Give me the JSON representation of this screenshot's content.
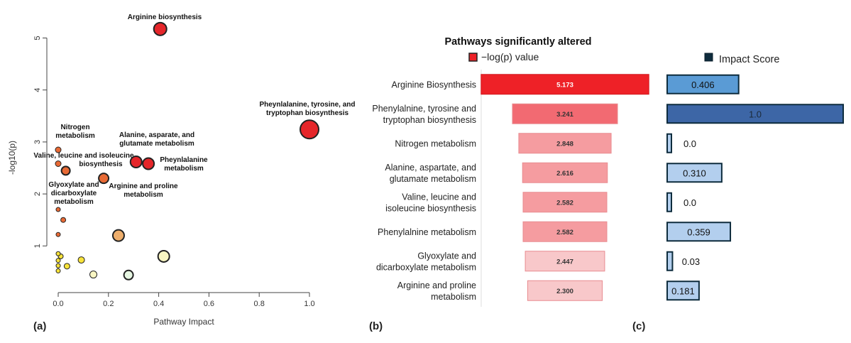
{
  "panel_labels": {
    "a": "(a)",
    "b": "(b)",
    "c": "(c)"
  },
  "colors": {
    "bar_deep": "#ee2127",
    "bar_mid": "#f26a72",
    "bar_light": "#f59ca0",
    "bar_pale": "#f8c8ca",
    "impact_mid": "#5a9bd5",
    "impact_dark": "#3d66a6",
    "impact_light": "#b3cfee",
    "impact_border": "#0e2c3d",
    "bubble_red": "#e5262a",
    "bubble_orange": "#e86a35",
    "bubble_tan": "#eeae6c",
    "bubble_yellow": "#f8e33a",
    "bubble_pale": "#f9f6c3",
    "bubble_mint": "#e6f6e2"
  },
  "chart_data": [
    {
      "type": "scatter",
      "title": "",
      "xlabel": "Pathway Impact",
      "ylabel": "-log10(p)",
      "xlim": [
        0,
        1.0
      ],
      "ylim": [
        0.2,
        5.35
      ],
      "xticks": [
        "0.0",
        "0.2",
        "0.4",
        "0.6",
        "0.8",
        "1.0"
      ],
      "yticks": [
        "1",
        "2",
        "3",
        "4",
        "5"
      ],
      "points": [
        {
          "x": 0.406,
          "y": 5.173,
          "size": 9,
          "color": "bubble_red",
          "label": "Arginine biosynthesis"
        },
        {
          "x": 1.0,
          "y": 3.241,
          "size": 13,
          "color": "bubble_red",
          "label": "Pheynlalanine, tyrosine, and tryptophan biosynthesis"
        },
        {
          "x": 0.0,
          "y": 2.848,
          "size": 4,
          "color": "bubble_orange",
          "label": "Nitrogen metabolism"
        },
        {
          "x": 0.31,
          "y": 2.616,
          "size": 8,
          "color": "bubble_red",
          "label": "Alanine, asparate, and glutamate metabolism"
        },
        {
          "x": 0.359,
          "y": 2.582,
          "size": 8,
          "color": "bubble_red",
          "label": "Pheynlalanine metabolism"
        },
        {
          "x": 0.0,
          "y": 2.582,
          "size": 4,
          "color": "bubble_orange",
          "label": "Valine, leucine and isoleucine biosynthesis"
        },
        {
          "x": 0.03,
          "y": 2.447,
          "size": 6,
          "color": "bubble_orange",
          "label": "Glyoxylate and dicarboxylate metabolism"
        },
        {
          "x": 0.181,
          "y": 2.3,
          "size": 7,
          "color": "bubble_orange",
          "label": "Arginine and proline metabolism"
        },
        {
          "x": 0.0,
          "y": 1.7,
          "size": 3,
          "color": "bubble_orange",
          "label": ""
        },
        {
          "x": 0.02,
          "y": 1.5,
          "size": 3.5,
          "color": "bubble_orange",
          "label": ""
        },
        {
          "x": 0.0,
          "y": 1.22,
          "size": 3,
          "color": "bubble_orange",
          "label": ""
        },
        {
          "x": 0.24,
          "y": 1.2,
          "size": 8,
          "color": "bubble_tan",
          "label": ""
        },
        {
          "x": 0.42,
          "y": 0.8,
          "size": 8,
          "color": "bubble_pale",
          "label": ""
        },
        {
          "x": 0.0,
          "y": 0.85,
          "size": 3,
          "color": "bubble_yellow",
          "label": ""
        },
        {
          "x": 0.01,
          "y": 0.8,
          "size": 3.5,
          "color": "bubble_yellow",
          "label": ""
        },
        {
          "x": 0.0,
          "y": 0.72,
          "size": 3,
          "color": "bubble_yellow",
          "label": ""
        },
        {
          "x": 0.092,
          "y": 0.73,
          "size": 4.5,
          "color": "bubble_yellow",
          "label": ""
        },
        {
          "x": 0.0,
          "y": 0.62,
          "size": 3,
          "color": "bubble_yellow",
          "label": ""
        },
        {
          "x": 0.035,
          "y": 0.61,
          "size": 4,
          "color": "bubble_yellow",
          "label": ""
        },
        {
          "x": 0.0,
          "y": 0.52,
          "size": 3,
          "color": "bubble_yellow",
          "label": ""
        },
        {
          "x": 0.14,
          "y": 0.45,
          "size": 5,
          "color": "bubble_pale",
          "label": ""
        },
        {
          "x": 0.28,
          "y": 0.44,
          "size": 6.5,
          "color": "bubble_mint",
          "label": ""
        }
      ]
    },
    {
      "type": "bar",
      "title": "Pathways significantly altered",
      "legend": "−log(p) value",
      "categories": [
        "Arginine Biosynthesis",
        "Phenylalnine, tyrosine and tryptophan biosynthesis",
        "Nitrogen metabolism",
        "Alanine, aspartate, and glutamate metabolism",
        "Valine, leucine and isoleucine biosynthesis",
        "Phenylalnine metabolism",
        "Glyoxylate and dicarboxylate metabolism",
        "Arginine and proline metabolism"
      ],
      "category_lines": [
        [
          "Arginine Biosynthesis"
        ],
        [
          "Phenylalnine, tyrosine and",
          "tryptophan biosynthesis"
        ],
        [
          "Nitrogen metabolism"
        ],
        [
          "Alanine, aspartate, and",
          "glutamate metabolism"
        ],
        [
          "Valine, leucine and",
          "isoleucine biosynthesis"
        ],
        [
          "Phenylalnine metabolism"
        ],
        [
          "Glyoxylate and",
          "dicarboxylate metabolism"
        ],
        [
          "Arginine and proline",
          "metabolism"
        ]
      ],
      "values": [
        5.173,
        3.241,
        2.848,
        2.616,
        2.582,
        2.582,
        2.447,
        2.3
      ],
      "value_labels": [
        "5.173",
        "3.241",
        "2.848",
        "2.616",
        "2.582",
        "2.582",
        "2.447",
        "2.300"
      ],
      "bar_colors": [
        "bar_deep",
        "bar_mid",
        "bar_light",
        "bar_light",
        "bar_light",
        "bar_light",
        "bar_pale",
        "bar_pale"
      ],
      "orientation": "horizontal-centered"
    },
    {
      "type": "bar",
      "legend": "Impact Score",
      "values": [
        0.406,
        1.0,
        0.0,
        0.31,
        0.0,
        0.359,
        0.03,
        0.181
      ],
      "value_labels": [
        "0.406",
        "1.0",
        "0.0",
        "0.310",
        "0.0",
        "0.359",
        "0.03",
        "0.181"
      ],
      "bar_colors": [
        "impact_mid",
        "impact_dark",
        "impact_light",
        "impact_light",
        "impact_light",
        "impact_light",
        "impact_light",
        "impact_light"
      ]
    }
  ]
}
